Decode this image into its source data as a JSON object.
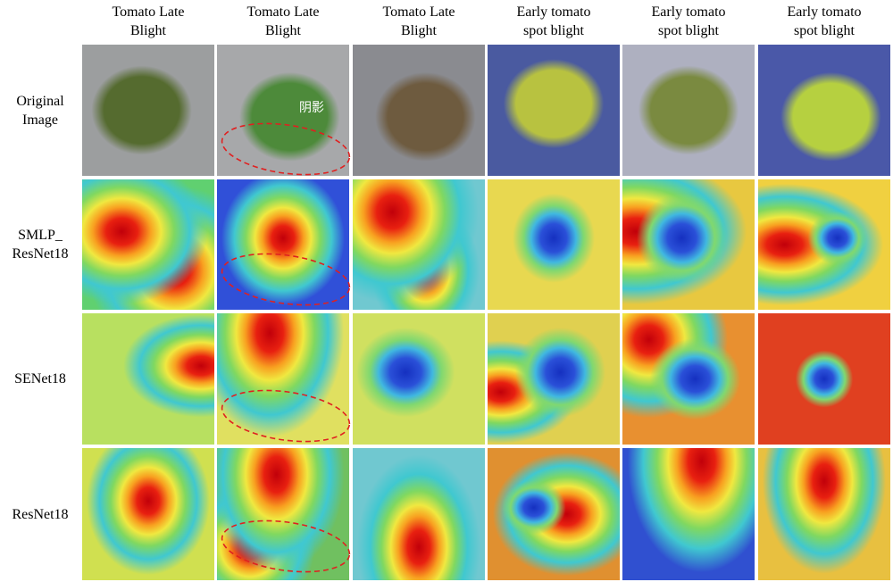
{
  "columns": [
    {
      "lines": [
        "Tomato Late",
        "Blight"
      ]
    },
    {
      "lines": [
        "Tomato Late",
        "Blight"
      ]
    },
    {
      "lines": [
        "Tomato Late",
        "Blight"
      ]
    },
    {
      "lines": [
        "Early tomato",
        "spot blight"
      ]
    },
    {
      "lines": [
        "Early tomato",
        "spot blight"
      ]
    },
    {
      "lines": [
        "Early tomato",
        "spot blight"
      ]
    }
  ],
  "rows": [
    {
      "lines": [
        "Original",
        "Image"
      ]
    },
    {
      "lines": [
        "SMLP_",
        "ResNet18"
      ]
    },
    {
      "lines": [
        "SENet18"
      ]
    },
    {
      "lines": [
        "ResNet18"
      ]
    }
  ],
  "annotation": "阴影"
}
